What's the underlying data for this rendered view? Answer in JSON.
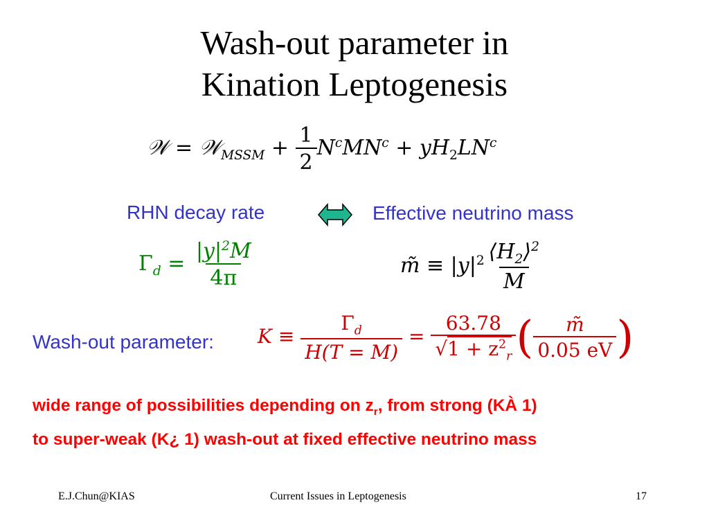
{
  "slide": {
    "title_line1": "Wash-out parameter in",
    "title_line2": "Kination Leptogenesis"
  },
  "superpotential": {
    "lhs": "𝒲 = 𝒲",
    "lhs_sub": "MSSM",
    "plus1": " + ",
    "half_num": "1",
    "half_den": "2",
    "term1": "N",
    "term1_sup": "c",
    "term2": "MN",
    "term2_sup": "c",
    "term3": " + yH",
    "term3_sub": "2",
    "term4": "LN",
    "term4_sup": "c"
  },
  "labels": {
    "rhn_decay_rate": "RHN decay rate",
    "effective_neutrino_mass": "Effective neutrino mass",
    "washout_label": "Wash-out parameter:",
    "arrow_color": "#1fb58f"
  },
  "gamma_formula": {
    "lhs": "Γ",
    "lhs_sub": "d",
    "eq": " = ",
    "num": "|y|",
    "num_sup": "2",
    "num_tail": "M",
    "den": "4π"
  },
  "mtilde_formula": {
    "lhs": "m̃ ≡ |y|",
    "lhs_sup": "2",
    "num": "⟨H",
    "num_sub": "2",
    "num_tail": "⟩",
    "num_sup": "2",
    "den": "M"
  },
  "washout_formula": {
    "lhs": "K ≡ ",
    "f1_num": "Γ",
    "f1_num_sub": "d",
    "f1_den": "H(T = M)",
    "eq": " = ",
    "f2_num": "63.78",
    "f2_den_pre": "√",
    "f2_den": "1 + z",
    "f2_den_sup": "2",
    "f2_den_sub": "r",
    "f3_num": "m̃",
    "f3_den": "0.05 eV"
  },
  "conclusion": {
    "line1_a": "wide range of possibilities depending on z",
    "line1_sub": "r",
    "line1_b": ", from strong (KÀ 1)",
    "line2": "to super-weak (K¿ 1) wash-out at fixed effective neutrino mass"
  },
  "footer": {
    "author": "E.J.Chun@KIAS",
    "talk_title": "Current Issues in Leptogenesis",
    "page_number": "17"
  }
}
